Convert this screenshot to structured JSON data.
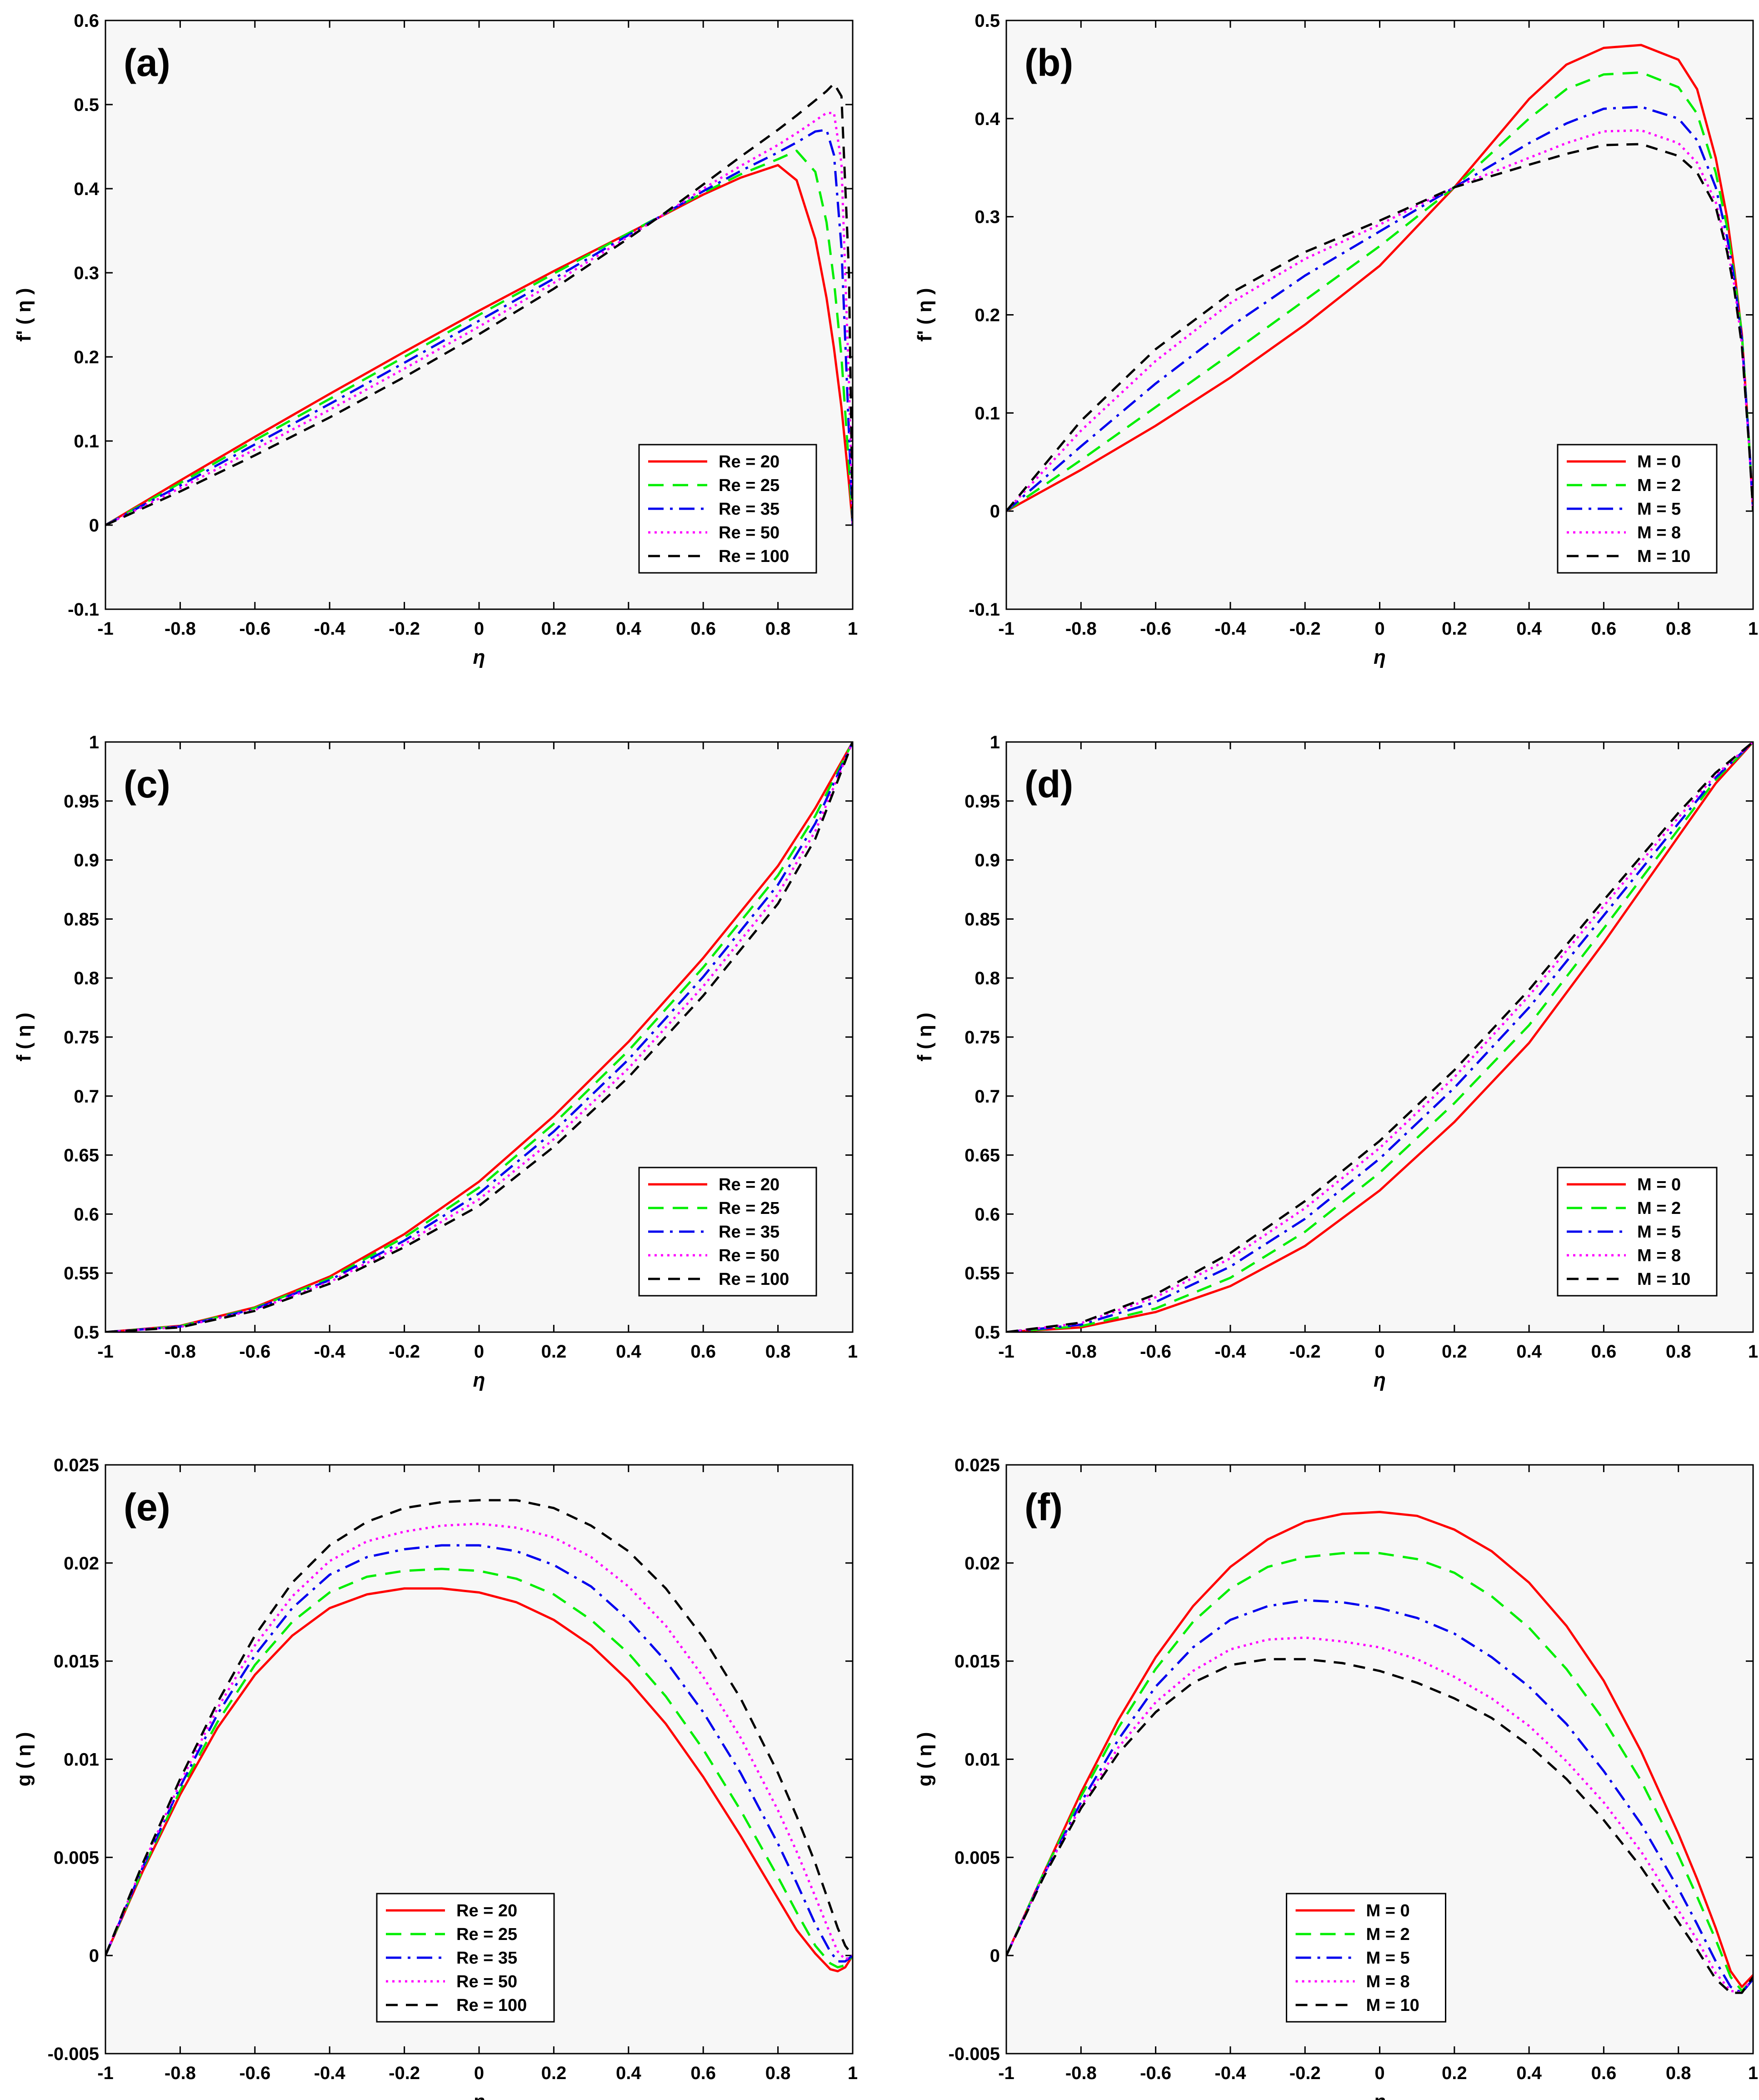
{
  "colors": {
    "plot_bg": "#f7f7f7",
    "series": [
      "#ff0000",
      "#00ee00",
      "#0000ee",
      "#ff00ff",
      "#000000"
    ]
  },
  "chart_data": [
    {
      "type": "line",
      "panel": "(a)",
      "xlabel": "η",
      "ylabel": "f' ( η )",
      "xlim": [
        -1,
        1
      ],
      "ylim": [
        -0.1,
        0.6
      ],
      "xticks": [
        "-1",
        "-0.8",
        "-0.6",
        "-0.4",
        "-0.2",
        "0",
        "0.2",
        "0.4",
        "0.6",
        "0.8",
        "1"
      ],
      "yticks": [
        "-0.1",
        "0",
        "0.1",
        "0.2",
        "0.3",
        "0.4",
        "0.5",
        "0.6"
      ],
      "legend_position": "bottom-right",
      "x": [
        -1,
        -0.8,
        -0.6,
        -0.4,
        -0.2,
        0,
        0.2,
        0.4,
        0.5,
        0.6,
        0.7,
        0.8,
        0.85,
        0.9,
        0.93,
        0.95,
        0.97,
        0.99,
        1
      ],
      "series": [
        {
          "name": "Re = 20",
          "dash": "solid",
          "values": [
            0,
            0.053,
            0.105,
            0.156,
            0.206,
            0.255,
            0.302,
            0.347,
            0.37,
            0.393,
            0.413,
            0.428,
            0.41,
            0.34,
            0.27,
            0.21,
            0.14,
            0.05,
            0
          ]
        },
        {
          "name": "Re = 25",
          "dash": "dashed",
          "values": [
            0,
            0.05,
            0.101,
            0.15,
            0.2,
            0.25,
            0.299,
            0.347,
            0.371,
            0.395,
            0.417,
            0.435,
            0.445,
            0.42,
            0.36,
            0.29,
            0.2,
            0.07,
            0
          ]
        },
        {
          "name": "Re = 35",
          "dash": "dashdot",
          "values": [
            0,
            0.047,
            0.096,
            0.144,
            0.193,
            0.243,
            0.293,
            0.345,
            0.371,
            0.397,
            0.421,
            0.443,
            0.455,
            0.468,
            0.47,
            0.44,
            0.33,
            0.11,
            0
          ]
        },
        {
          "name": "Re = 50",
          "dash": "dotted",
          "values": [
            0,
            0.044,
            0.09,
            0.137,
            0.186,
            0.236,
            0.288,
            0.343,
            0.371,
            0.4,
            0.427,
            0.452,
            0.466,
            0.481,
            0.49,
            0.49,
            0.43,
            0.17,
            0
          ]
        },
        {
          "name": "Re = 100",
          "dash": "longdash",
          "values": [
            0,
            0.04,
            0.083,
            0.128,
            0.176,
            0.227,
            0.281,
            0.341,
            0.372,
            0.405,
            0.438,
            0.47,
            0.487,
            0.505,
            0.516,
            0.525,
            0.51,
            0.3,
            0
          ]
        }
      ]
    },
    {
      "type": "line",
      "panel": "(b)",
      "xlabel": "η",
      "ylabel": "f' ( η )",
      "xlim": [
        -1,
        1
      ],
      "ylim": [
        -0.1,
        0.5
      ],
      "xticks": [
        "-1",
        "-0.8",
        "-0.6",
        "-0.4",
        "-0.2",
        "0",
        "0.2",
        "0.4",
        "0.6",
        "0.8",
        "1"
      ],
      "yticks": [
        "-0.1",
        "0",
        "0.1",
        "0.2",
        "0.3",
        "0.4",
        "0.5"
      ],
      "legend_position": "bottom-right",
      "x": [
        -1,
        -0.8,
        -0.6,
        -0.4,
        -0.2,
        0,
        0.2,
        0.4,
        0.5,
        0.6,
        0.7,
        0.8,
        0.85,
        0.9,
        0.93,
        0.95,
        0.97,
        0.99,
        1
      ],
      "series": [
        {
          "name": "M = 0",
          "dash": "solid",
          "values": [
            0,
            0.042,
            0.087,
            0.136,
            0.19,
            0.25,
            0.33,
            0.42,
            0.455,
            0.472,
            0.475,
            0.46,
            0.43,
            0.36,
            0.3,
            0.245,
            0.18,
            0.065,
            0
          ]
        },
        {
          "name": "M = 2",
          "dash": "dashed",
          "values": [
            0,
            0.052,
            0.106,
            0.16,
            0.215,
            0.27,
            0.33,
            0.4,
            0.43,
            0.445,
            0.447,
            0.432,
            0.405,
            0.345,
            0.29,
            0.24,
            0.18,
            0.065,
            0
          ]
        },
        {
          "name": "M = 5",
          "dash": "dashdot",
          "values": [
            0,
            0.066,
            0.13,
            0.188,
            0.24,
            0.285,
            0.33,
            0.375,
            0.395,
            0.41,
            0.412,
            0.4,
            0.378,
            0.33,
            0.28,
            0.235,
            0.175,
            0.065,
            0
          ]
        },
        {
          "name": "M = 8",
          "dash": "dotted",
          "values": [
            0,
            0.082,
            0.153,
            0.212,
            0.257,
            0.292,
            0.33,
            0.36,
            0.375,
            0.387,
            0.388,
            0.375,
            0.355,
            0.315,
            0.27,
            0.23,
            0.17,
            0.063,
            0
          ]
        },
        {
          "name": "M = 10",
          "dash": "longdash",
          "values": [
            0,
            0.092,
            0.165,
            0.222,
            0.264,
            0.296,
            0.33,
            0.353,
            0.364,
            0.373,
            0.374,
            0.362,
            0.345,
            0.31,
            0.265,
            0.225,
            0.168,
            0.062,
            0
          ]
        }
      ]
    },
    {
      "type": "line",
      "panel": "(c)",
      "xlabel": "η",
      "ylabel": "f ( η )",
      "xlim": [
        -1,
        1
      ],
      "ylim": [
        0.5,
        1
      ],
      "xticks": [
        "-1",
        "-0.8",
        "-0.6",
        "-0.4",
        "-0.2",
        "0",
        "0.2",
        "0.4",
        "0.6",
        "0.8",
        "1"
      ],
      "yticks": [
        "0.5",
        "0.55",
        "0.6",
        "0.65",
        "0.7",
        "0.75",
        "0.8",
        "0.85",
        "0.9",
        "0.95",
        "1"
      ],
      "legend_position": "bottom-right",
      "x": [
        -1,
        -0.8,
        -0.6,
        -0.4,
        -0.2,
        0,
        0.2,
        0.4,
        0.6,
        0.8,
        0.9,
        1
      ],
      "series": [
        {
          "name": "Re = 20",
          "dash": "solid",
          "values": [
            0.5,
            0.5053,
            0.521,
            0.547,
            0.583,
            0.6275,
            0.683,
            0.746,
            0.817,
            0.895,
            0.944,
            1
          ]
        },
        {
          "name": "Re = 25",
          "dash": "dashed",
          "values": [
            0.5,
            0.505,
            0.5204,
            0.5455,
            0.5804,
            0.6225,
            0.6765,
            0.7385,
            0.809,
            0.887,
            0.9375,
            1
          ]
        },
        {
          "name": "Re = 35",
          "dash": "dashdot",
          "values": [
            0.5,
            0.5047,
            0.5196,
            0.544,
            0.5775,
            0.6175,
            0.67,
            0.731,
            0.801,
            0.879,
            0.931,
            1
          ]
        },
        {
          "name": "Re = 50",
          "dash": "dotted",
          "values": [
            0.5,
            0.5044,
            0.5188,
            0.5425,
            0.5746,
            0.6125,
            0.6635,
            0.7235,
            0.793,
            0.871,
            0.9245,
            1
          ]
        },
        {
          "name": "Re = 100",
          "dash": "longdash",
          "values": [
            0.5,
            0.504,
            0.518,
            0.541,
            0.572,
            0.607,
            0.657,
            0.716,
            0.785,
            0.863,
            0.918,
            1
          ]
        }
      ]
    },
    {
      "type": "line",
      "panel": "(d)",
      "xlabel": "η",
      "ylabel": "f ( η )",
      "xlim": [
        -1,
        1
      ],
      "ylim": [
        0.5,
        1
      ],
      "xticks": [
        "-1",
        "-0.8",
        "-0.6",
        "-0.4",
        "-0.2",
        "0",
        "0.2",
        "0.4",
        "0.6",
        "0.8",
        "1"
      ],
      "yticks": [
        "0.5",
        "0.55",
        "0.6",
        "0.65",
        "0.7",
        "0.75",
        "0.8",
        "0.85",
        "0.9",
        "0.95",
        "1"
      ],
      "legend_position": "bottom-right",
      "x": [
        -1,
        -0.8,
        -0.6,
        -0.4,
        -0.2,
        0,
        0.2,
        0.4,
        0.6,
        0.8,
        0.9,
        1
      ],
      "series": [
        {
          "name": "M = 0",
          "dash": "solid",
          "values": [
            0.5,
            0.504,
            0.517,
            0.539,
            0.573,
            0.62,
            0.678,
            0.745,
            0.83,
            0.92,
            0.965,
            1
          ]
        },
        {
          "name": "M = 2",
          "dash": "dashed",
          "values": [
            0.5,
            0.505,
            0.52,
            0.546,
            0.585,
            0.635,
            0.694,
            0.76,
            0.842,
            0.926,
            0.968,
            1
          ]
        },
        {
          "name": "M = 5",
          "dash": "dashdot",
          "values": [
            0.5,
            0.5063,
            0.5255,
            0.5555,
            0.596,
            0.647,
            0.707,
            0.775,
            0.853,
            0.931,
            0.97,
            1
          ]
        },
        {
          "name": "M = 8",
          "dash": "dotted",
          "values": [
            0.5,
            0.5076,
            0.5295,
            0.5625,
            0.605,
            0.656,
            0.716,
            0.785,
            0.861,
            0.936,
            0.972,
            1
          ]
        },
        {
          "name": "M = 10",
          "dash": "longdash",
          "values": [
            0.5,
            0.508,
            0.532,
            0.567,
            0.611,
            0.662,
            0.722,
            0.79,
            0.866,
            0.94,
            0.974,
            1
          ]
        }
      ]
    },
    {
      "type": "line",
      "panel": "(e)",
      "xlabel": "η",
      "ylabel": "g ( η )",
      "xlim": [
        -1,
        1
      ],
      "ylim": [
        -0.005,
        0.025
      ],
      "xticks": [
        "-1",
        "-0.8",
        "-0.6",
        "-0.4",
        "-0.2",
        "0",
        "0.2",
        "0.4",
        "0.6",
        "0.8",
        "1"
      ],
      "yticks": [
        "-0.005",
        "0",
        "0.005",
        "0.01",
        "0.015",
        "0.02",
        "0.025"
      ],
      "legend_position": "bottom-center",
      "x": [
        -1,
        -0.9,
        -0.8,
        -0.7,
        -0.6,
        -0.5,
        -0.4,
        -0.3,
        -0.2,
        -0.1,
        0,
        0.1,
        0.2,
        0.3,
        0.4,
        0.5,
        0.6,
        0.7,
        0.8,
        0.85,
        0.9,
        0.94,
        0.96,
        0.98,
        1
      ],
      "series": [
        {
          "name": "Re = 20",
          "dash": "solid",
          "values": [
            0,
            0.0043,
            0.0082,
            0.0116,
            0.0143,
            0.0163,
            0.0177,
            0.0184,
            0.0187,
            0.0187,
            0.0185,
            0.018,
            0.0171,
            0.0158,
            0.014,
            0.0118,
            0.0091,
            0.0061,
            0.0029,
            0.0013,
            0.0001,
            -0.0007,
            -0.0008,
            -0.0006,
            0
          ]
        },
        {
          "name": "Re = 25",
          "dash": "dashed",
          "values": [
            0,
            0.0044,
            0.0084,
            0.0119,
            0.0148,
            0.017,
            0.0185,
            0.0193,
            0.0196,
            0.0197,
            0.0196,
            0.0192,
            0.0184,
            0.0171,
            0.0154,
            0.0132,
            0.0105,
            0.0074,
            0.004,
            0.0022,
            0.0005,
            -0.0004,
            -0.0006,
            -0.0005,
            0
          ]
        },
        {
          "name": "Re = 35",
          "dash": "dashdot",
          "values": [
            0,
            0.0045,
            0.0086,
            0.0123,
            0.0153,
            0.0177,
            0.0194,
            0.0203,
            0.0207,
            0.0209,
            0.0209,
            0.0206,
            0.0199,
            0.0188,
            0.0171,
            0.015,
            0.0124,
            0.0093,
            0.0057,
            0.0037,
            0.0016,
            0.0002,
            -0.0003,
            -0.0003,
            0
          ]
        },
        {
          "name": "Re = 50",
          "dash": "dotted",
          "values": [
            0,
            0.0046,
            0.0088,
            0.0126,
            0.0158,
            0.0183,
            0.0201,
            0.0211,
            0.0216,
            0.0219,
            0.022,
            0.0218,
            0.0213,
            0.0203,
            0.0188,
            0.0168,
            0.0142,
            0.0111,
            0.0074,
            0.0053,
            0.003,
            0.0011,
            0.0002,
            -0.0002,
            0
          ]
        },
        {
          "name": "Re = 100",
          "dash": "longdash",
          "values": [
            0,
            0.0047,
            0.009,
            0.0129,
            0.0163,
            0.019,
            0.0209,
            0.0221,
            0.0228,
            0.0231,
            0.0232,
            0.0232,
            0.0228,
            0.0219,
            0.0206,
            0.0187,
            0.0162,
            0.0131,
            0.0093,
            0.0071,
            0.0047,
            0.0025,
            0.0014,
            0.0005,
            0
          ]
        }
      ]
    },
    {
      "type": "line",
      "panel": "(f)",
      "xlabel": "η",
      "ylabel": "g ( η )",
      "xlim": [
        -1,
        1
      ],
      "ylim": [
        -0.005,
        0.025
      ],
      "xticks": [
        "-1",
        "-0.8",
        "-0.6",
        "-0.4",
        "-0.2",
        "0",
        "0.2",
        "0.4",
        "0.6",
        "0.8",
        "1"
      ],
      "yticks": [
        "-0.005",
        "0",
        "0.005",
        "0.01",
        "0.015",
        "0.02",
        "0.025"
      ],
      "legend_position": "bottom-center",
      "x": [
        -1,
        -0.9,
        -0.8,
        -0.7,
        -0.6,
        -0.5,
        -0.4,
        -0.3,
        -0.2,
        -0.1,
        0,
        0.1,
        0.2,
        0.3,
        0.4,
        0.5,
        0.6,
        0.7,
        0.8,
        0.85,
        0.9,
        0.94,
        0.97,
        1
      ],
      "series": [
        {
          "name": "M = 0",
          "dash": "solid",
          "values": [
            0,
            0.0042,
            0.0083,
            0.012,
            0.0152,
            0.0178,
            0.0198,
            0.0212,
            0.0221,
            0.0225,
            0.0226,
            0.0224,
            0.0217,
            0.0206,
            0.019,
            0.0168,
            0.014,
            0.0104,
            0.0062,
            0.0039,
            0.0014,
            -0.0008,
            -0.0016,
            -0.001
          ]
        },
        {
          "name": "M = 2",
          "dash": "dashed",
          "values": [
            0,
            0.0042,
            0.0081,
            0.0116,
            0.0146,
            0.017,
            0.0187,
            0.0198,
            0.0203,
            0.0205,
            0.0205,
            0.0202,
            0.0195,
            0.0183,
            0.0167,
            0.0146,
            0.012,
            0.0089,
            0.0051,
            0.003,
            0.0008,
            -0.0011,
            -0.0018,
            -0.0012
          ]
        },
        {
          "name": "M = 5",
          "dash": "dashdot",
          "values": [
            0,
            0.0041,
            0.0078,
            0.011,
            0.0137,
            0.0157,
            0.0171,
            0.0178,
            0.0181,
            0.018,
            0.0177,
            0.0172,
            0.0164,
            0.0152,
            0.0137,
            0.0118,
            0.0094,
            0.0067,
            0.0034,
            0.0016,
            -0.0003,
            -0.0016,
            -0.0019,
            -0.0012
          ]
        },
        {
          "name": "M = 8",
          "dash": "dotted",
          "values": [
            0,
            0.0041,
            0.0076,
            0.0106,
            0.0129,
            0.0145,
            0.0156,
            0.0161,
            0.0162,
            0.016,
            0.0157,
            0.0151,
            0.0142,
            0.0131,
            0.0117,
            0.0099,
            0.0078,
            0.0053,
            0.0023,
            0.0008,
            -0.0009,
            -0.0018,
            -0.0019,
            -0.0011
          ]
        },
        {
          "name": "M = 10",
          "dash": "longdash",
          "values": [
            0,
            0.004,
            0.0075,
            0.0103,
            0.0124,
            0.0139,
            0.0148,
            0.0151,
            0.0151,
            0.0149,
            0.0145,
            0.0139,
            0.0131,
            0.0121,
            0.0107,
            0.009,
            0.0069,
            0.0045,
            0.0017,
            0.0003,
            -0.0012,
            -0.0019,
            -0.0019,
            -0.0011
          ]
        }
      ]
    }
  ]
}
